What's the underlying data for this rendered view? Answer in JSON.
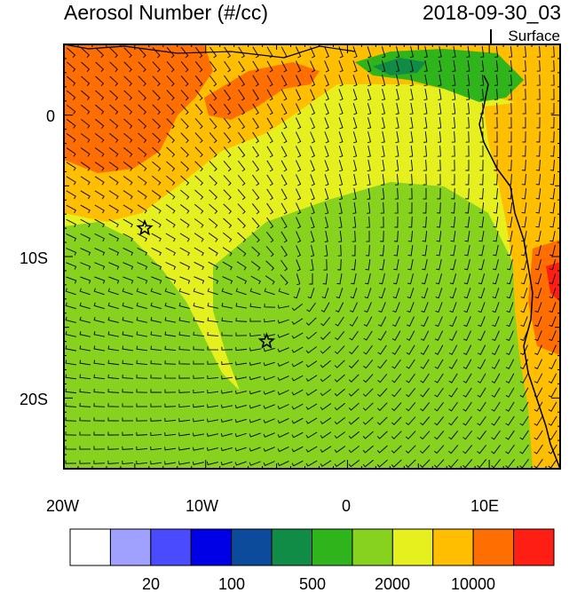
{
  "header": {
    "title": "Aerosol Number (#/cc)",
    "datetime": "2018-09-30_03",
    "level": "Surface"
  },
  "axes": {
    "x_ticks": [
      "20W",
      "10W",
      "0",
      "10E"
    ],
    "y_ticks": [
      "0",
      "10S",
      "20S"
    ]
  },
  "colorbar": {
    "colors": [
      "#ffffff",
      "#a0a0ff",
      "#4a4aff",
      "#0000e6",
      "#0c4b9c",
      "#118c46",
      "#2fb41b",
      "#87d21e",
      "#e6f01e",
      "#ffbe00",
      "#ff6e00",
      "#ff1e14"
    ],
    "labels": [
      "20",
      "100",
      "500",
      "2000",
      "10000"
    ]
  },
  "markers": [
    {
      "name": "station-star-north",
      "lon": -14.3,
      "lat": -8.0
    },
    {
      "name": "station-star-south",
      "lon": -5.7,
      "lat": -16.0
    }
  ],
  "map_extent": {
    "lon": [
      -20,
      15
    ],
    "lat": [
      -25,
      5
    ]
  }
}
